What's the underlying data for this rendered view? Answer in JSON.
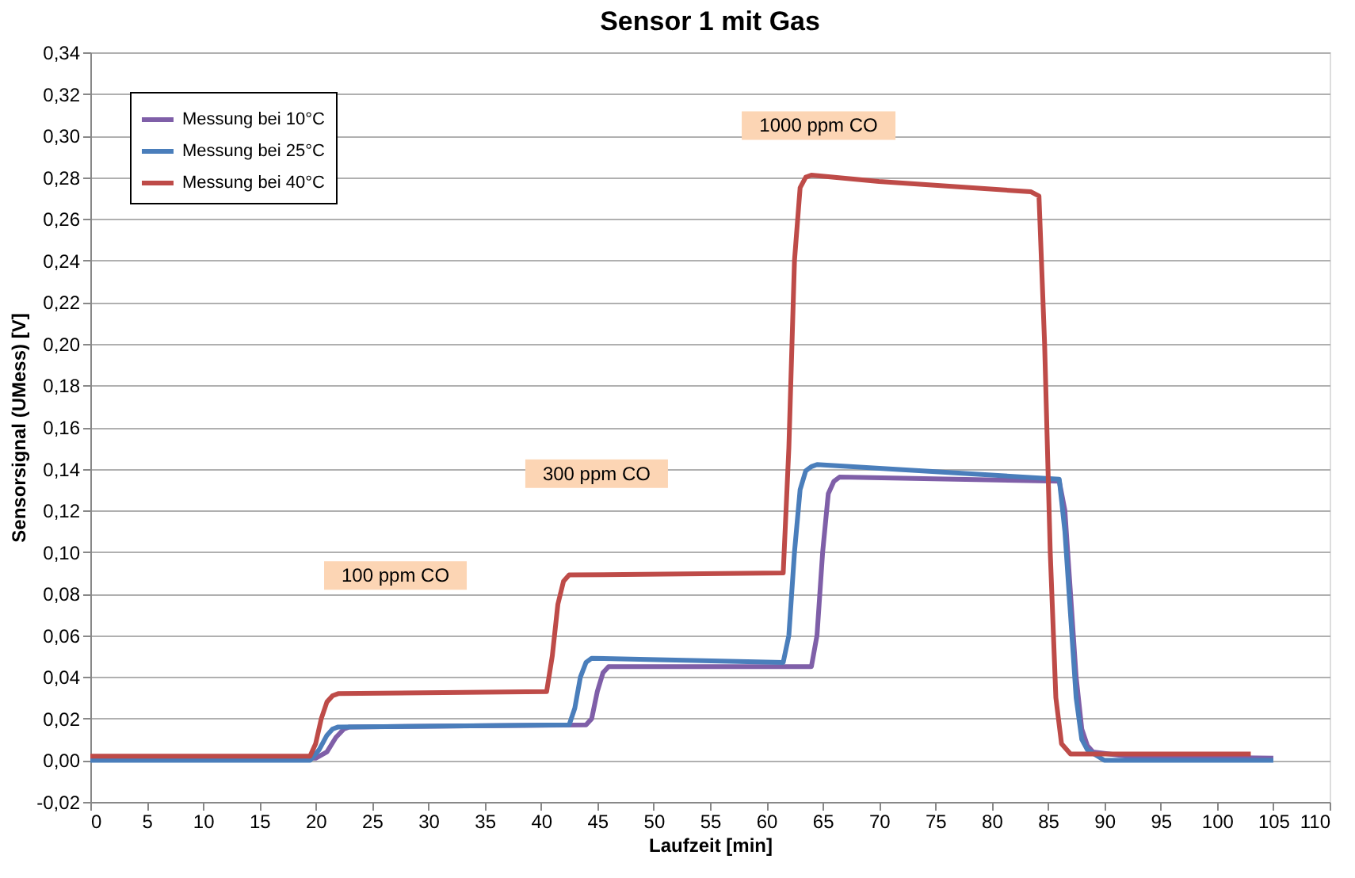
{
  "chart_data": {
    "type": "line",
    "title": "Sensor 1 mit Gas",
    "xlabel": "Laufzeit [min]",
    "ylabel": "Sensorsignal (UMess) [V]",
    "xlim": [
      0,
      110
    ],
    "xticks": [
      0,
      5,
      10,
      15,
      20,
      25,
      30,
      35,
      40,
      45,
      50,
      55,
      60,
      65,
      70,
      75,
      80,
      85,
      90,
      95,
      100,
      105,
      110
    ],
    "ylim": [
      -0.02,
      0.34
    ],
    "yticks": [
      {
        "value": -0.02,
        "label": "-0,02"
      },
      {
        "value": 0,
        "label": "0,00"
      },
      {
        "value": 0.02,
        "label": "0,02"
      },
      {
        "value": 0.04,
        "label": "0,04"
      },
      {
        "value": 0.06,
        "label": "0,06"
      },
      {
        "value": 0.08,
        "label": "0,08"
      },
      {
        "value": 0.1,
        "label": "0,10"
      },
      {
        "value": 0.12,
        "label": "0,12"
      },
      {
        "value": 0.14,
        "label": "0,14"
      },
      {
        "value": 0.16,
        "label": "0,16"
      },
      {
        "value": 0.18,
        "label": "0,18"
      },
      {
        "value": 0.2,
        "label": "0,20"
      },
      {
        "value": 0.22,
        "label": "0,22"
      },
      {
        "value": 0.24,
        "label": "0,24"
      },
      {
        "value": 0.26,
        "label": "0,26"
      },
      {
        "value": 0.28,
        "label": "0,28"
      },
      {
        "value": 0.3,
        "label": "0,30"
      },
      {
        "value": 0.32,
        "label": "0,32"
      },
      {
        "value": 0.34,
        "label": "0,34"
      }
    ],
    "grid": "y",
    "legend": "top left",
    "marker": "none",
    "line_style": "solid",
    "series": [
      {
        "name": "Messung bei 10°C",
        "color": "#7f5fa8",
        "x": [
          0,
          20,
          21,
          21.8,
          22.5,
          23,
          44,
          44.5,
          45,
          45.5,
          46,
          64,
          64.5,
          65,
          65.5,
          66,
          66.5,
          86,
          86.5,
          87,
          87.5,
          88,
          88.5,
          89,
          92,
          105
        ],
        "values": [
          0.001,
          0.001,
          0.004,
          0.011,
          0.015,
          0.016,
          0.017,
          0.02,
          0.033,
          0.042,
          0.045,
          0.045,
          0.06,
          0.1,
          0.128,
          0.134,
          0.136,
          0.134,
          0.12,
          0.08,
          0.04,
          0.015,
          0.007,
          0.004,
          0.002,
          0.001
        ]
      },
      {
        "name": "Messung bei 25°C",
        "color": "#4a7ebb",
        "x": [
          0,
          19.5,
          20.3,
          21,
          21.5,
          22,
          42.5,
          43,
          43.5,
          44,
          44.5,
          61.5,
          62,
          62.5,
          63,
          63.5,
          64,
          64.5,
          86,
          86.5,
          87,
          87.5,
          88,
          88.5,
          90,
          105
        ],
        "values": [
          0.0,
          0.0,
          0.005,
          0.012,
          0.015,
          0.016,
          0.017,
          0.025,
          0.04,
          0.047,
          0.049,
          0.047,
          0.06,
          0.1,
          0.13,
          0.139,
          0.141,
          0.142,
          0.135,
          0.11,
          0.07,
          0.03,
          0.01,
          0.005,
          0.0,
          0.0
        ]
      },
      {
        "name": "Messung bei 40°C",
        "color": "#be4b48",
        "x": [
          0,
          19.5,
          20,
          20.5,
          21,
          21.5,
          22,
          40.5,
          41,
          41.5,
          42,
          42.5,
          61.5,
          62,
          62.5,
          63,
          63.5,
          64,
          70,
          83.5,
          84.2,
          84.7,
          85.2,
          85.7,
          86.2,
          87,
          103
        ],
        "values": [
          0.002,
          0.002,
          0.008,
          0.02,
          0.028,
          0.031,
          0.032,
          0.033,
          0.05,
          0.075,
          0.086,
          0.089,
          0.09,
          0.15,
          0.24,
          0.275,
          0.28,
          0.281,
          0.278,
          0.273,
          0.271,
          0.2,
          0.1,
          0.03,
          0.008,
          0.003,
          0.003
        ]
      }
    ],
    "annotations": [
      "100 ppm CO",
      "300 ppm CO",
      "1000 ppm CO"
    ]
  }
}
